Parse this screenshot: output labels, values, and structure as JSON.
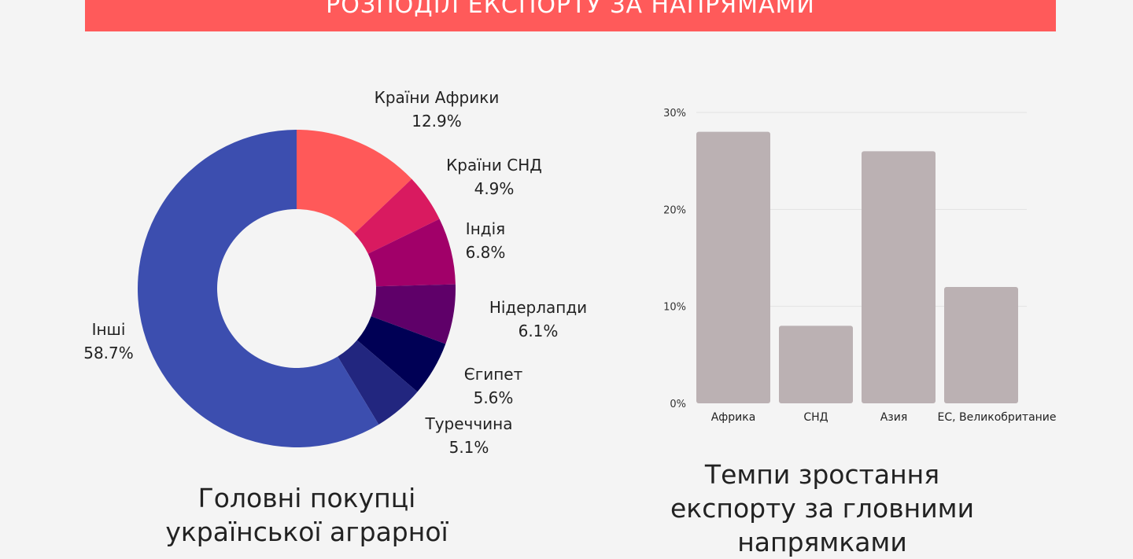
{
  "header": {
    "title": "РОЗПОДІЛ ЕКСПОРТУ ЗА НАПРЯМАМИ"
  },
  "colors": {
    "banner": "#ff5a5a",
    "bars": "#bbb1b3",
    "background": "#f4f4f4"
  },
  "chart_data": [
    {
      "type": "pie",
      "variant": "donut",
      "title_lines": [
        "Головні покупці",
        "української аграрної"
      ],
      "slices": [
        {
          "name": "Країни Африки",
          "label": "12.9%",
          "value": 12.9,
          "color": "#ff5959"
        },
        {
          "name": "Країни СНД",
          "label": "4.9%",
          "value": 4.9,
          "color": "#d91a60"
        },
        {
          "name": "Індія",
          "label": "6.8%",
          "value": 6.8,
          "color": "#a10069"
        },
        {
          "name": "Нідерлапди",
          "label": "6.1%",
          "value": 6.1,
          "color": "#5f0069"
        },
        {
          "name": "Єгипет",
          "label": "5.6%",
          "value": 5.6,
          "color": "#000055"
        },
        {
          "name": "Туреччина",
          "label": "5.1%",
          "value": 5.1,
          "color": "#22267f"
        },
        {
          "name": "Інші",
          "label": "58.7%",
          "value": 58.7,
          "color": "#3c4eaf"
        }
      ]
    },
    {
      "type": "bar",
      "title_lines": [
        "Темпи зростання",
        "експорту за гловними",
        "напрямками"
      ],
      "categories": [
        "Африка",
        "СНД",
        "Азия",
        "ЕС, Великобритание"
      ],
      "values": [
        28,
        8,
        26,
        12
      ],
      "ylim": [
        0,
        30
      ],
      "yticks": [
        0,
        10,
        20,
        30
      ],
      "ytick_labels": [
        "0%",
        "10%",
        "20%",
        "30%"
      ],
      "grid": true
    }
  ]
}
